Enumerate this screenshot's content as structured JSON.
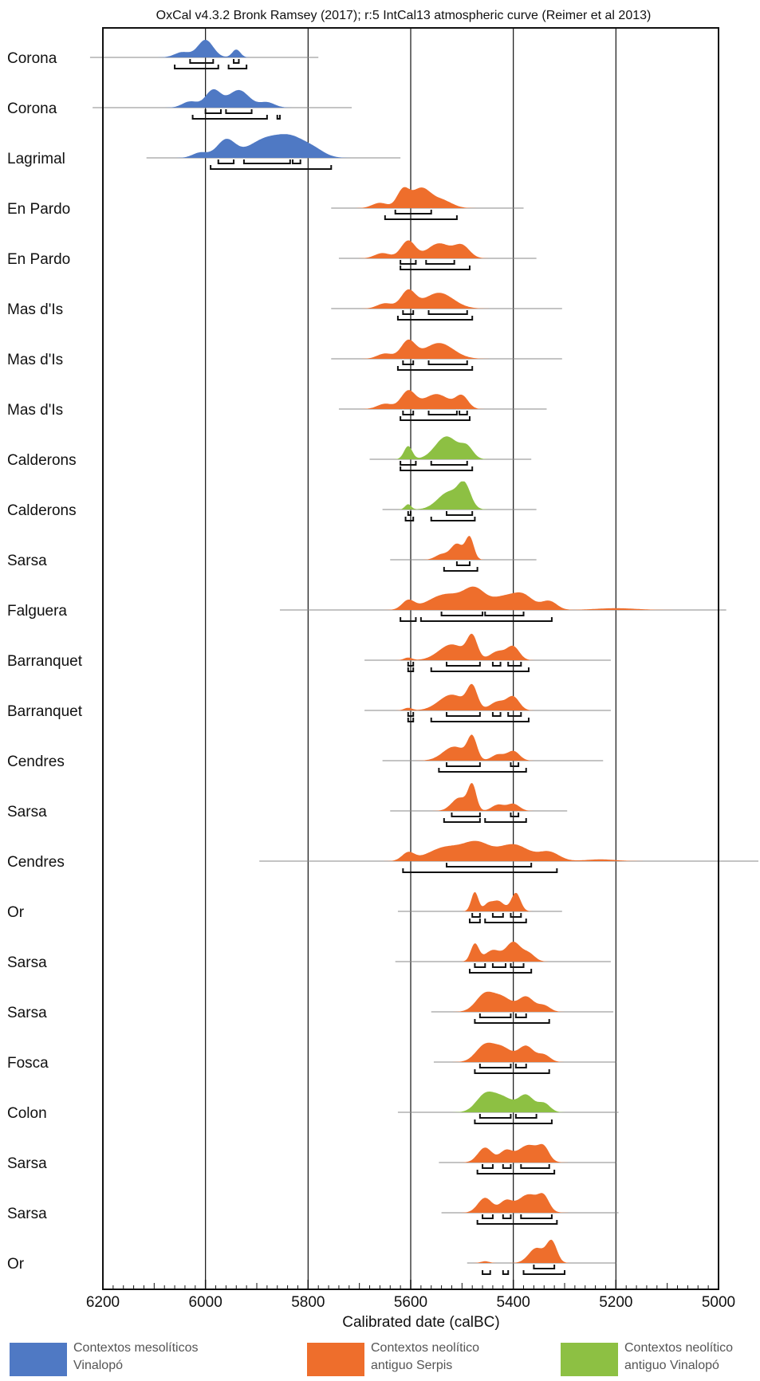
{
  "chart_data": {
    "type": "area",
    "title": "OxCal v4.3.2 Bronk Ramsey (2017); r:5 IntCal13 atmospheric curve (Reimer et al 2013)",
    "xlabel": "Calibrated date (calBC)",
    "ylabel": "",
    "xlim": [
      6200,
      5000
    ],
    "x_ticks": [
      6200,
      6000,
      5800,
      5600,
      5400,
      5200,
      5000
    ],
    "x_tick_labels": [
      "6200",
      "6000",
      "5800",
      "5600",
      "5400",
      "5200",
      "5000"
    ],
    "gridlines": [
      6000,
      5800,
      5600,
      5400,
      5200
    ],
    "legend_position": "bottom",
    "colors": {
      "meso": "#4f79c4",
      "serpis": "#ee6e2c",
      "vinalopo": "#8dc043"
    },
    "legend": [
      {
        "key": "meso",
        "name": "Contextos mesolíticos Vinalopó"
      },
      {
        "key": "serpis",
        "name": "Contextos neolítico antiguo Serpis"
      },
      {
        "key": "vinalopo",
        "name": "Contextos neolítico antiguo Vinalopó"
      }
    ],
    "series": [
      {
        "label": "Corona",
        "group": "meso",
        "range": [
          6225,
          5780
        ],
        "peaks": [
          [
            6000,
            1.0,
            15
          ],
          [
            5940,
            0.45,
            8
          ],
          [
            6045,
            0.3,
            15
          ]
        ],
        "hpd68": [
          [
            6030,
            5985
          ],
          [
            5945,
            5935
          ]
        ],
        "hpd95": [
          [
            6060,
            5975
          ],
          [
            5955,
            5920
          ]
        ]
      },
      {
        "label": "Corona",
        "group": "meso",
        "range": [
          6220,
          5715
        ],
        "peaks": [
          [
            5985,
            1.0,
            15
          ],
          [
            5935,
            1.0,
            20
          ],
          [
            6030,
            0.35,
            15
          ],
          [
            5880,
            0.3,
            15
          ]
        ],
        "hpd68": [
          [
            6000,
            5970
          ],
          [
            5960,
            5910
          ]
        ],
        "hpd95": [
          [
            6025,
            5880
          ],
          [
            5860,
            5855
          ]
        ]
      },
      {
        "label": "Lagrimal",
        "group": "meso",
        "range": [
          6115,
          5620
        ],
        "peaks": [
          [
            5960,
            1.0,
            18
          ],
          [
            5880,
            1.1,
            35
          ],
          [
            5830,
            0.8,
            25
          ],
          [
            5790,
            0.45,
            22
          ],
          [
            6010,
            0.3,
            15
          ]
        ],
        "hpd68": [
          [
            5975,
            5945
          ],
          [
            5925,
            5835
          ],
          [
            5830,
            5815
          ]
        ],
        "hpd95": [
          [
            5990,
            5755
          ]
        ]
      },
      {
        "label": "En Pardo",
        "group": "serpis",
        "range": [
          5755,
          5380
        ],
        "peaks": [
          [
            5615,
            1.0,
            12
          ],
          [
            5580,
            1.1,
            18
          ],
          [
            5540,
            0.45,
            20
          ],
          [
            5660,
            0.3,
            15
          ]
        ],
        "hpd68": [
          [
            5630,
            5560
          ]
        ],
        "hpd95": [
          [
            5650,
            5510
          ]
        ]
      },
      {
        "label": "En Pardo",
        "group": "serpis",
        "range": [
          5740,
          5355
        ],
        "peaks": [
          [
            5605,
            1.0,
            14
          ],
          [
            5545,
            0.85,
            22
          ],
          [
            5500,
            0.7,
            15
          ],
          [
            5655,
            0.3,
            15
          ]
        ],
        "hpd68": [
          [
            5620,
            5590
          ],
          [
            5570,
            5515
          ]
        ],
        "hpd95": [
          [
            5620,
            5485
          ]
        ]
      },
      {
        "label": "Mas d'Is",
        "group": "serpis",
        "range": [
          5755,
          5305
        ],
        "peaks": [
          [
            5605,
            1.0,
            14
          ],
          [
            5545,
            0.9,
            28
          ],
          [
            5650,
            0.3,
            15
          ]
        ],
        "hpd68": [
          [
            5615,
            5595
          ],
          [
            5565,
            5490
          ]
        ],
        "hpd95": [
          [
            5625,
            5480
          ]
        ]
      },
      {
        "label": "Mas d'Is",
        "group": "serpis",
        "range": [
          5755,
          5305
        ],
        "peaks": [
          [
            5605,
            1.0,
            14
          ],
          [
            5545,
            0.9,
            28
          ],
          [
            5650,
            0.3,
            15
          ]
        ],
        "hpd68": [
          [
            5615,
            5595
          ],
          [
            5565,
            5490
          ]
        ],
        "hpd95": [
          [
            5625,
            5480
          ]
        ]
      },
      {
        "label": "Mas d'Is",
        "group": "serpis",
        "range": [
          5740,
          5335
        ],
        "peaks": [
          [
            5605,
            1.0,
            14
          ],
          [
            5550,
            0.85,
            25
          ],
          [
            5500,
            0.7,
            12
          ],
          [
            5650,
            0.3,
            15
          ]
        ],
        "hpd68": [
          [
            5615,
            5595
          ],
          [
            5565,
            5510
          ],
          [
            5505,
            5490
          ]
        ],
        "hpd95": [
          [
            5620,
            5485
          ]
        ]
      },
      {
        "label": "Calderons",
        "group": "vinalopo",
        "range": [
          5680,
          5365
        ],
        "peaks": [
          [
            5605,
            0.75,
            8
          ],
          [
            5530,
            1.3,
            22
          ],
          [
            5490,
            0.6,
            12
          ]
        ],
        "hpd68": [
          [
            5620,
            5590
          ],
          [
            5560,
            5490
          ]
        ],
        "hpd95": [
          [
            5620,
            5480
          ]
        ]
      },
      {
        "label": "Calderons",
        "group": "vinalopo",
        "range": [
          5655,
          5355
        ],
        "peaks": [
          [
            5605,
            0.3,
            6
          ],
          [
            5525,
            1.0,
            22
          ],
          [
            5495,
            1.2,
            12
          ]
        ],
        "hpd68": [
          [
            5605,
            5600
          ],
          [
            5530,
            5480
          ]
        ],
        "hpd95": [
          [
            5610,
            5595
          ],
          [
            5560,
            5475
          ]
        ]
      },
      {
        "label": "Sarsa",
        "group": "serpis",
        "range": [
          5640,
          5355
        ],
        "peaks": [
          [
            5510,
            0.9,
            12
          ],
          [
            5485,
            1.25,
            8
          ],
          [
            5540,
            0.3,
            12
          ]
        ],
        "hpd68": [
          [
            5510,
            5485
          ]
        ],
        "hpd95": [
          [
            5535,
            5470
          ]
        ]
      },
      {
        "label": "Falguera",
        "group": "serpis",
        "range": [
          5855,
          4985
        ],
        "peaks": [
          [
            5605,
            0.5,
            12
          ],
          [
            5530,
            0.9,
            35
          ],
          [
            5475,
            1.0,
            20
          ],
          [
            5420,
            0.7,
            25
          ],
          [
            5380,
            0.75,
            20
          ],
          [
            5330,
            0.5,
            15
          ],
          [
            5200,
            0.1,
            40
          ]
        ],
        "hpd68": [
          [
            5540,
            5460
          ],
          [
            5455,
            5380
          ]
        ],
        "hpd95": [
          [
            5620,
            5590
          ],
          [
            5580,
            5325
          ]
        ]
      },
      {
        "label": "Barranquet",
        "group": "serpis",
        "range": [
          5690,
          5210
        ],
        "peaks": [
          [
            5520,
            0.9,
            25
          ],
          [
            5480,
            1.25,
            10
          ],
          [
            5430,
            0.5,
            15
          ],
          [
            5400,
            0.75,
            12
          ],
          [
            5605,
            0.15,
            8
          ]
        ],
        "hpd68": [
          [
            5605,
            5595
          ],
          [
            5530,
            5465
          ],
          [
            5440,
            5425
          ],
          [
            5410,
            5385
          ]
        ],
        "hpd95": [
          [
            5605,
            5595
          ],
          [
            5560,
            5370
          ]
        ]
      },
      {
        "label": "Barranquet",
        "group": "serpis",
        "range": [
          5690,
          5210
        ],
        "peaks": [
          [
            5520,
            0.9,
            25
          ],
          [
            5480,
            1.25,
            10
          ],
          [
            5430,
            0.5,
            15
          ],
          [
            5400,
            0.75,
            12
          ],
          [
            5605,
            0.15,
            8
          ]
        ],
        "hpd68": [
          [
            5605,
            5595
          ],
          [
            5530,
            5465
          ],
          [
            5440,
            5425
          ],
          [
            5410,
            5385
          ]
        ],
        "hpd95": [
          [
            5605,
            5595
          ],
          [
            5560,
            5370
          ]
        ]
      },
      {
        "label": "Cendres",
        "group": "serpis",
        "range": [
          5655,
          5225
        ],
        "peaks": [
          [
            5515,
            0.8,
            22
          ],
          [
            5480,
            1.25,
            9
          ],
          [
            5430,
            0.35,
            12
          ],
          [
            5400,
            0.55,
            12
          ]
        ],
        "hpd68": [
          [
            5530,
            5465
          ],
          [
            5405,
            5390
          ]
        ],
        "hpd95": [
          [
            5545,
            5375
          ]
        ]
      },
      {
        "label": "Sarsa",
        "group": "serpis",
        "range": [
          5640,
          5295
        ],
        "peaks": [
          [
            5505,
            0.75,
            15
          ],
          [
            5480,
            1.4,
            8
          ],
          [
            5430,
            0.35,
            12
          ],
          [
            5400,
            0.4,
            12
          ]
        ],
        "hpd68": [
          [
            5520,
            5465
          ],
          [
            5405,
            5390
          ]
        ],
        "hpd95": [
          [
            5535,
            5465
          ],
          [
            5455,
            5375
          ]
        ]
      },
      {
        "label": "Cendres",
        "group": "serpis",
        "range": [
          5895,
          4920
        ],
        "peaks": [
          [
            5605,
            0.45,
            12
          ],
          [
            5530,
            0.8,
            35
          ],
          [
            5470,
            0.9,
            25
          ],
          [
            5400,
            0.95,
            30
          ],
          [
            5330,
            0.5,
            20
          ],
          [
            5230,
            0.1,
            30
          ]
        ],
        "hpd68": [
          [
            5530,
            5365
          ]
        ],
        "hpd95": [
          [
            5615,
            5315
          ]
        ]
      },
      {
        "label": "Or",
        "group": "serpis",
        "range": [
          5625,
          5305
        ],
        "peaks": [
          [
            5475,
            1.1,
            7
          ],
          [
            5430,
            0.6,
            12
          ],
          [
            5395,
            1.05,
            9
          ],
          [
            5450,
            0.35,
            8
          ]
        ],
        "hpd68": [
          [
            5480,
            5465
          ],
          [
            5440,
            5420
          ],
          [
            5405,
            5385
          ]
        ],
        "hpd95": [
          [
            5485,
            5465
          ],
          [
            5455,
            5375
          ]
        ]
      },
      {
        "label": "Sarsa",
        "group": "serpis",
        "range": [
          5630,
          5210
        ],
        "peaks": [
          [
            5475,
            1.0,
            8
          ],
          [
            5440,
            0.65,
            15
          ],
          [
            5400,
            1.1,
            14
          ],
          [
            5370,
            0.45,
            12
          ]
        ],
        "hpd68": [
          [
            5475,
            5455
          ],
          [
            5440,
            5415
          ],
          [
            5405,
            5380
          ]
        ],
        "hpd95": [
          [
            5485,
            5365
          ]
        ]
      },
      {
        "label": "Sarsa",
        "group": "serpis",
        "range": [
          5560,
          5205
        ],
        "peaks": [
          [
            5455,
            1.0,
            18
          ],
          [
            5420,
            0.75,
            18
          ],
          [
            5375,
            0.85,
            15
          ],
          [
            5340,
            0.35,
            12
          ]
        ],
        "hpd68": [
          [
            5465,
            5405
          ],
          [
            5395,
            5375
          ]
        ],
        "hpd95": [
          [
            5475,
            5330
          ]
        ]
      },
      {
        "label": "Fosca",
        "group": "serpis",
        "range": [
          5555,
          5200
        ],
        "peaks": [
          [
            5455,
            0.95,
            18
          ],
          [
            5420,
            0.75,
            18
          ],
          [
            5375,
            0.9,
            15
          ],
          [
            5340,
            0.4,
            12
          ]
        ],
        "hpd68": [
          [
            5465,
            5405
          ],
          [
            5395,
            5375
          ]
        ],
        "hpd95": [
          [
            5475,
            5330
          ]
        ]
      },
      {
        "label": "Colon",
        "group": "vinalopo",
        "range": [
          5625,
          5195
        ],
        "peaks": [
          [
            5455,
            0.95,
            18
          ],
          [
            5420,
            0.8,
            20
          ],
          [
            5375,
            0.95,
            15
          ],
          [
            5340,
            0.5,
            12
          ]
        ],
        "hpd68": [
          [
            5465,
            5405
          ],
          [
            5395,
            5355
          ]
        ],
        "hpd95": [
          [
            5475,
            5325
          ]
        ]
      },
      {
        "label": "Sarsa",
        "group": "serpis",
        "range": [
          5545,
          5200
        ],
        "peaks": [
          [
            5455,
            0.85,
            14
          ],
          [
            5415,
            0.6,
            12
          ],
          [
            5370,
            1.0,
            22
          ],
          [
            5340,
            0.6,
            10
          ]
        ],
        "hpd68": [
          [
            5460,
            5440
          ],
          [
            5420,
            5405
          ],
          [
            5385,
            5330
          ]
        ],
        "hpd95": [
          [
            5470,
            5320
          ]
        ]
      },
      {
        "label": "Sarsa",
        "group": "serpis",
        "range": [
          5540,
          5195
        ],
        "peaks": [
          [
            5455,
            0.85,
            14
          ],
          [
            5415,
            0.6,
            12
          ],
          [
            5370,
            1.05,
            22
          ],
          [
            5340,
            0.65,
            10
          ]
        ],
        "hpd68": [
          [
            5460,
            5440
          ],
          [
            5420,
            5405
          ],
          [
            5385,
            5325
          ]
        ],
        "hpd95": [
          [
            5470,
            5315
          ]
        ]
      },
      {
        "label": "Or",
        "group": "serpis",
        "range": [
          5490,
          5200
        ],
        "peaks": [
          [
            5355,
            0.85,
            15
          ],
          [
            5325,
            1.2,
            10
          ],
          [
            5455,
            0.1,
            8
          ]
        ],
        "hpd68": [
          [
            5360,
            5320
          ]
        ],
        "hpd95": [
          [
            5460,
            5445
          ],
          [
            5420,
            5410
          ],
          [
            5380,
            5300
          ]
        ]
      }
    ]
  }
}
